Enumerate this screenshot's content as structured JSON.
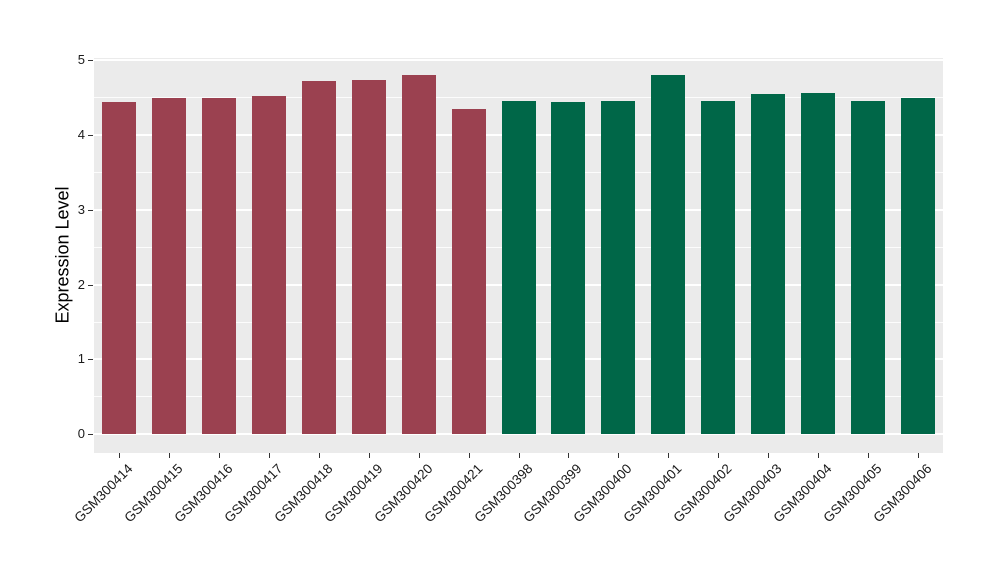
{
  "figure": {
    "background": "#FFFFFF"
  },
  "chart_data": {
    "type": "bar",
    "title": "",
    "xlabel": "",
    "ylabel": "Expression Level",
    "categories": [
      "GSM300414",
      "GSM300415",
      "GSM300416",
      "GSM300417",
      "GSM300418",
      "GSM300419",
      "GSM300420",
      "GSM300421",
      "GSM300398",
      "GSM300399",
      "GSM300400",
      "GSM300401",
      "GSM300402",
      "GSM300403",
      "GSM300404",
      "GSM300405",
      "GSM300406"
    ],
    "values": [
      4.44,
      4.5,
      4.49,
      4.52,
      4.72,
      4.73,
      4.8,
      4.35,
      4.46,
      4.44,
      4.46,
      4.8,
      4.45,
      4.55,
      4.56,
      4.45,
      4.49
    ],
    "bar_color_per_category": [
      "#9B4150",
      "#9B4150",
      "#9B4150",
      "#9B4150",
      "#9B4150",
      "#9B4150",
      "#9B4150",
      "#9B4150",
      "#006748",
      "#006748",
      "#006748",
      "#006748",
      "#006748",
      "#006748",
      "#006748",
      "#006748",
      "#006748"
    ],
    "color_groups": [
      {
        "color": "#9B4150",
        "first_category": "GSM300414",
        "last_category": "GSM300421",
        "count": 8
      },
      {
        "color": "#006748",
        "first_category": "GSM300398",
        "last_category": "GSM300406",
        "count": 9
      }
    ],
    "ylim": [
      0,
      5
    ],
    "y_ticks": [
      0,
      1,
      2,
      3,
      4,
      5
    ],
    "y_minor_ticks": [
      0.5,
      1.5,
      2.5,
      3.5,
      4.5
    ],
    "panel_value_range": [
      -0.25,
      5.03
    ],
    "x_tick_rotation_deg": 45,
    "legend": "none",
    "grid": "on",
    "panel_background": "#EBEBEB",
    "gridline_color": "#FFFFFF",
    "axis_text_color": "#1a1a1a"
  }
}
